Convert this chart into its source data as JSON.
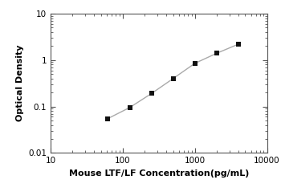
{
  "x_data": [
    62.5,
    125,
    250,
    500,
    1000,
    2000,
    4000
  ],
  "y_data": [
    0.055,
    0.095,
    0.19,
    0.4,
    0.85,
    1.4,
    2.2
  ],
  "xlabel": "Mouse LTF/LF Concentration(pg/mL)",
  "ylabel": "Optical Density",
  "xlim": [
    10,
    10000
  ],
  "ylim": [
    0.01,
    10
  ],
  "line_color": "#aaaaaa",
  "marker_color": "#111111",
  "marker": "s",
  "marker_size": 4,
  "line_width": 1.0,
  "background_color": "#ffffff",
  "xlabel_fontsize": 8,
  "ylabel_fontsize": 8,
  "tick_fontsize": 7.5
}
